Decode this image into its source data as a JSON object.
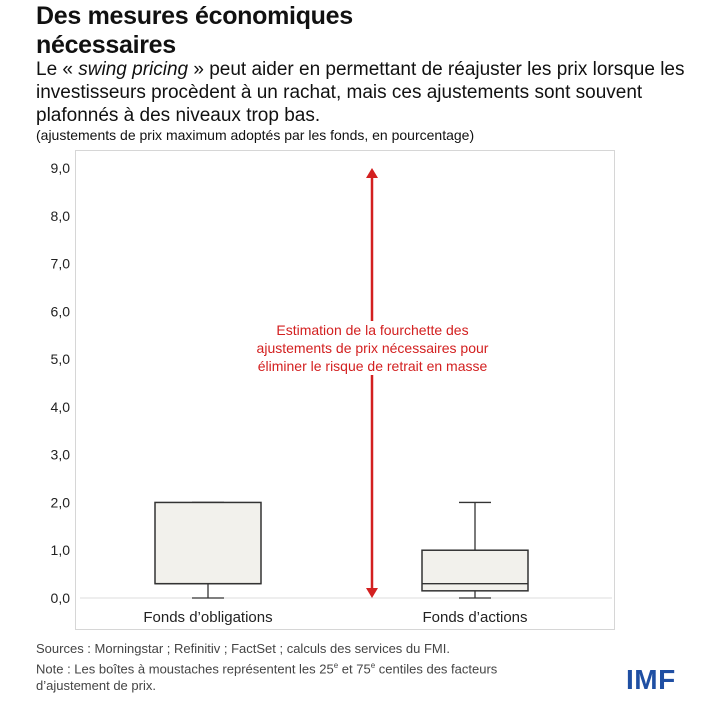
{
  "header": {
    "title": "Des mesures économiques nécessaires",
    "subtitle_pre": "Le « ",
    "subtitle_italic": "swing pricing",
    "subtitle_post": " » peut aider en permettant de réajuster les prix lorsque les investisseurs procèdent à un rachat, mais ces ajustements sont souvent plafonnés à des niveaux trop bas.",
    "unit_note": "(ajustements de prix maximum adoptés par les fonds, en pourcentage)"
  },
  "chart_data": {
    "type": "boxplot",
    "ylim": [
      0,
      9
    ],
    "yticks": [
      "0,0",
      "1,0",
      "2,0",
      "3,0",
      "4,0",
      "5,0",
      "6,0",
      "7,0",
      "8,0",
      "9,0"
    ],
    "grid": false,
    "categories": [
      "Fonds d’obligations",
      "Fonds d’actions"
    ],
    "boxes": [
      {
        "category": "Fonds d’obligations",
        "whisker_low": 0,
        "q1": 0.3,
        "median": 0.3,
        "q3": 2.0,
        "whisker_high": 2.0
      },
      {
        "category": "Fonds d’actions",
        "whisker_low": 0,
        "q1": 0.15,
        "median": 0.3,
        "q3": 1.0,
        "whisker_high": 2.0
      }
    ],
    "annotation": {
      "text": "Estimation de la fourchette des ajustements de prix nécessaires pour éliminer le risque de retrait en masse",
      "range": [
        0,
        9
      ],
      "color": "#d32020"
    },
    "box_fill": "#f2f1ec"
  },
  "footer": {
    "sources": "Sources : Morningstar ; Refinitiv ; FactSet ; calculs des services du FMI.",
    "note_pre": "Note : Les boîtes à moustaches représentent les 25",
    "sup1": "e",
    "note_mid": " et 75",
    "sup2": "e",
    "note_post": " centiles des facteurs d’ajustement de prix.",
    "logo": "IMF"
  }
}
